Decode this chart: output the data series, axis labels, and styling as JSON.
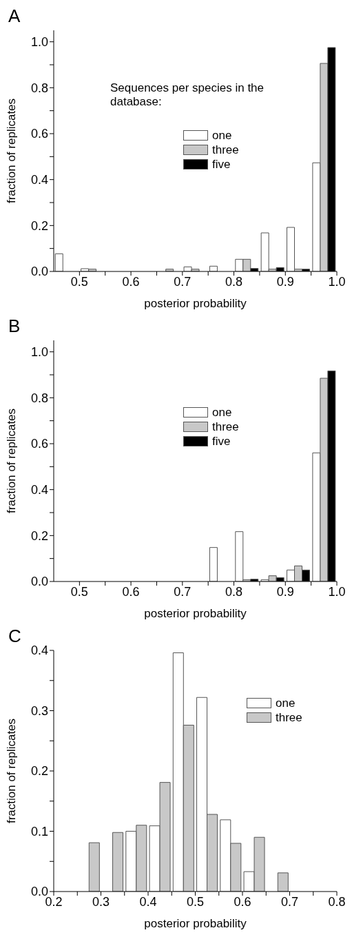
{
  "chart_data": [
    {
      "type": "bar",
      "title": "A",
      "xlabel": "posterior probability",
      "ylabel": "fraction of replicates",
      "legend_title": "Sequences per species in the database:",
      "x": [
        0.475,
        0.525,
        0.575,
        0.625,
        0.675,
        0.725,
        0.775,
        0.825,
        0.875,
        0.925,
        0.975
      ],
      "series": [
        {
          "name": "one",
          "color": "#ffffff",
          "values": [
            0.077,
            0.012,
            0,
            0,
            0,
            0.02,
            0.023,
            0.053,
            0.168,
            0.192,
            0.473
          ]
        },
        {
          "name": "three",
          "color": "#c8c8c8",
          "values": [
            0,
            0.01,
            0,
            0,
            0.01,
            0.01,
            0,
            0.053,
            0.01,
            0.01,
            0.906
          ]
        },
        {
          "name": "five",
          "color": "#000000",
          "values": [
            0,
            0,
            0,
            0,
            0,
            0,
            0,
            0.013,
            0.017,
            0.01,
            0.975
          ]
        }
      ],
      "xlim": [
        0.45,
        1.0
      ],
      "xticks": [
        0.5,
        {
          "value": 0.55,
          "label": null
        },
        0.6,
        {
          "value": 0.65,
          "label": null
        },
        0.7,
        {
          "value": 0.75,
          "label": null
        },
        0.8,
        {
          "value": 0.85,
          "label": null
        },
        0.9,
        {
          "value": 0.95,
          "label": null
        },
        {
          "value": 1,
          "label": "1.0"
        }
      ],
      "ylim": [
        0,
        1.05
      ],
      "yticks": [
        {
          "value": 0,
          "label": "0.0"
        },
        {
          "value": 0.1,
          "label": null
        },
        0.2,
        {
          "value": 0.3,
          "label": null
        },
        0.4,
        {
          "value": 0.5,
          "label": null
        },
        0.6,
        {
          "value": 0.7,
          "label": null
        },
        0.8,
        {
          "value": 0.9,
          "label": null
        },
        {
          "value": 1,
          "label": "1.0"
        }
      ],
      "grid": false,
      "legend": "top"
    },
    {
      "type": "bar",
      "title": "B",
      "xlabel": "posterior probability",
      "ylabel": "fraction of replicates",
      "x": [
        0.475,
        0.525,
        0.575,
        0.625,
        0.675,
        0.725,
        0.775,
        0.825,
        0.875,
        0.925,
        0.975
      ],
      "series": [
        {
          "name": "one",
          "color": "#ffffff",
          "values": [
            0,
            0,
            0,
            0,
            0,
            0,
            0.148,
            0.217,
            0.008,
            0.05,
            0.56
          ]
        },
        {
          "name": "three",
          "color": "#c8c8c8",
          "values": [
            0,
            0,
            0,
            0,
            0,
            0,
            0,
            0.008,
            0.025,
            0.068,
            0.885
          ]
        },
        {
          "name": "five",
          "color": "#000000",
          "values": [
            0,
            0,
            0,
            0,
            0,
            0,
            0,
            0.01,
            0.017,
            0.05,
            0.917
          ]
        }
      ],
      "xlim": [
        0.45,
        1.0
      ],
      "xticks": [
        0.5,
        {
          "value": 0.55,
          "label": null
        },
        0.6,
        {
          "value": 0.65,
          "label": null
        },
        0.7,
        {
          "value": 0.75,
          "label": null
        },
        0.8,
        {
          "value": 0.85,
          "label": null
        },
        0.9,
        {
          "value": 0.95,
          "label": null
        },
        {
          "value": 1,
          "label": "1.0"
        }
      ],
      "ylim": [
        0,
        1.05
      ],
      "yticks": [
        {
          "value": 0,
          "label": "0.0"
        },
        {
          "value": 0.1,
          "label": null
        },
        0.2,
        {
          "value": 0.3,
          "label": null
        },
        0.4,
        {
          "value": 0.5,
          "label": null
        },
        0.6,
        {
          "value": 0.7,
          "label": null
        },
        0.8,
        {
          "value": 0.9,
          "label": null
        },
        {
          "value": 1,
          "label": "1.0"
        }
      ],
      "grid": false,
      "legend": "top"
    },
    {
      "type": "bar",
      "title": "C",
      "xlabel": "posterior probability",
      "ylabel": "fraction of replicates",
      "x": [
        0.225,
        0.275,
        0.325,
        0.375,
        0.425,
        0.475,
        0.525,
        0.575,
        0.625,
        0.675
      ],
      "series": [
        {
          "name": "one",
          "color": "#ffffff",
          "values": [
            0,
            0,
            0,
            0.1,
            0.109,
            0.396,
            0.322,
            0.119,
            0.033,
            0
          ]
        },
        {
          "name": "three",
          "color": "#c8c8c8",
          "values": [
            0,
            0.081,
            0.098,
            0.11,
            0.181,
            0.276,
            0.128,
            0.08,
            0.09,
            0.031
          ]
        }
      ],
      "xlim": [
        0.2,
        0.8
      ],
      "xticks": [
        0.2,
        {
          "value": 0.25,
          "label": null
        },
        0.3,
        {
          "value": 0.35,
          "label": null
        },
        0.4,
        {
          "value": 0.45,
          "label": null
        },
        0.5,
        {
          "value": 0.55,
          "label": null
        },
        0.6,
        {
          "value": 0.65,
          "label": null
        },
        0.7,
        {
          "value": 0.75,
          "label": null
        },
        0.8
      ],
      "ylim": [
        0,
        0.4
      ],
      "yticks": [
        {
          "value": 0,
          "label": "0.0"
        },
        {
          "value": 0.05,
          "label": null
        },
        0.1,
        {
          "value": 0.15,
          "label": null
        },
        0.2,
        {
          "value": 0.25,
          "label": null
        },
        0.3,
        {
          "value": 0.35,
          "label": null
        },
        0.4
      ],
      "grid": false,
      "legend": "top right"
    }
  ]
}
